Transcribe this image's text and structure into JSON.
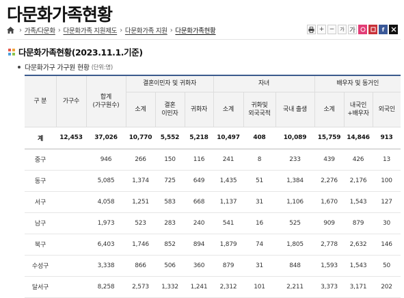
{
  "page": {
    "title": "다문화가족현황"
  },
  "breadcrumb": {
    "items": [
      "가족/다문화",
      "다문화가족 지원제도",
      "다문화가족 지원",
      "다문화가족현황"
    ]
  },
  "tools": {
    "plus": "+",
    "minus": "−",
    "font_small": "가",
    "font_large": "가"
  },
  "section": {
    "title": "다문화가족현황(2023.11.1.기준)"
  },
  "subsection": {
    "title": "다문화가구 가구원 현황",
    "unit": "(단위:명)"
  },
  "table": {
    "headers": {
      "category": "구 분",
      "households": "가구수",
      "total_line1": "합계",
      "total_line2": "(가구원수)",
      "group_marriage": "결혼이민자 및 귀화자",
      "group_children": "자녀",
      "group_spouse": "배우자 및 동거인",
      "sub_subtotal": "소계",
      "sub_marriage_line1": "결혼",
      "sub_marriage_line2": "이민자",
      "sub_naturalized": "귀화자",
      "sub_children_subtotal": "소계",
      "sub_naturalized_foreign_line1": "귀화및",
      "sub_naturalized_foreign_line2": "외국국적",
      "sub_domestic_birth": "국내 출생",
      "sub_spouse_subtotal": "소계",
      "sub_korean_spouse_line1": "내국인",
      "sub_korean_spouse_line2": "+배우자",
      "sub_foreigner": "외국인"
    },
    "rows": [
      {
        "name": "계",
        "cells": [
          "12,453",
          "37,026",
          "10,770",
          "5,552",
          "5,218",
          "10,497",
          "408",
          "10,089",
          "15,759",
          "14,846",
          "913"
        ]
      },
      {
        "name": "중구",
        "cells": [
          "",
          "946",
          "266",
          "150",
          "116",
          "241",
          "8",
          "233",
          "439",
          "426",
          "13"
        ]
      },
      {
        "name": "동구",
        "cells": [
          "",
          "5,085",
          "1,374",
          "725",
          "649",
          "1,435",
          "51",
          "1,384",
          "2,276",
          "2,176",
          "100"
        ]
      },
      {
        "name": "서구",
        "cells": [
          "",
          "4,058",
          "1,251",
          "583",
          "668",
          "1,137",
          "31",
          "1,106",
          "1,670",
          "1,543",
          "127"
        ]
      },
      {
        "name": "남구",
        "cells": [
          "",
          "1,973",
          "523",
          "283",
          "240",
          "541",
          "16",
          "525",
          "909",
          "879",
          "30"
        ]
      },
      {
        "name": "북구",
        "cells": [
          "",
          "6,403",
          "1,746",
          "852",
          "894",
          "1,879",
          "74",
          "1,805",
          "2,778",
          "2,632",
          "146"
        ]
      },
      {
        "name": "수성구",
        "cells": [
          "",
          "3,338",
          "866",
          "506",
          "360",
          "879",
          "31",
          "848",
          "1,593",
          "1,543",
          "50"
        ]
      },
      {
        "name": "달서구",
        "cells": [
          "",
          "8,258",
          "2,573",
          "1,332",
          "1,241",
          "2,312",
          "101",
          "2,211",
          "3,373",
          "3,171",
          "202"
        ]
      }
    ]
  }
}
